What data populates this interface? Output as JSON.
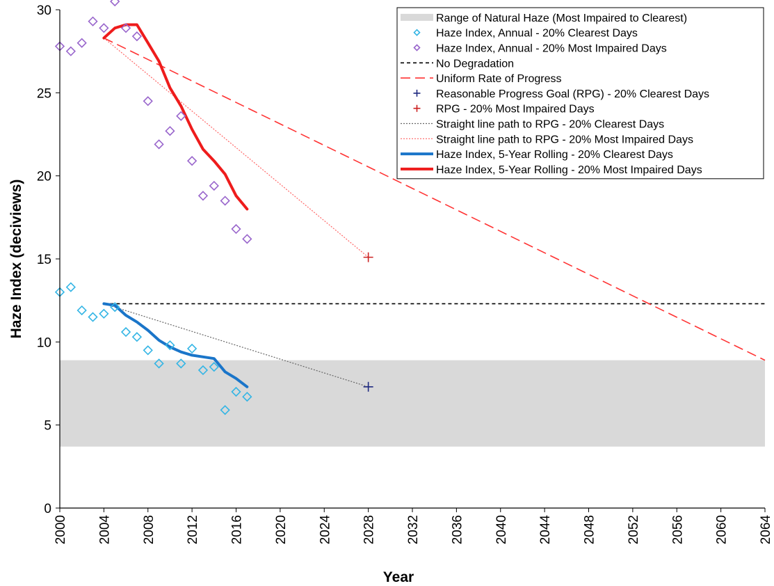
{
  "chart_data": {
    "type": "line",
    "xlabel": "Year",
    "ylabel": "Haze Index (deciviews)",
    "xlim": [
      2000,
      2064
    ],
    "ylim": [
      0,
      30
    ],
    "x_ticks": [
      "2000",
      "2004",
      "2008",
      "2012",
      "2016",
      "2020",
      "2024",
      "2028",
      "2032",
      "2036",
      "2040",
      "2044",
      "2048",
      "2052",
      "2056",
      "2060",
      "2064"
    ],
    "y_ticks": [
      "0",
      "5",
      "10",
      "15",
      "20",
      "25",
      "30"
    ],
    "legend_position": "top-right",
    "grid": false,
    "natural_haze_range": {
      "name": "Range of Natural Haze (Most Impaired to Clearest)",
      "y_min": 3.7,
      "y_max": 8.9,
      "color": "#d9d9d9"
    },
    "series": [
      {
        "name": "Haze Index, Annual - 20% Clearest Days",
        "kind": "scatter",
        "marker": "diamond",
        "color": "#33b5e5",
        "x": [
          2000,
          2001,
          2002,
          2003,
          2004,
          2005,
          2006,
          2007,
          2008,
          2009,
          2010,
          2011,
          2012,
          2013,
          2014,
          2015,
          2016,
          2017
        ],
        "y": [
          13.0,
          13.3,
          11.9,
          11.5,
          11.7,
          12.1,
          10.6,
          10.3,
          9.5,
          8.7,
          9.8,
          8.7,
          9.6,
          8.3,
          8.5,
          5.9,
          7.0,
          6.7
        ]
      },
      {
        "name": "Haze Index, Annual - 20% Most Impaired Days",
        "kind": "scatter",
        "marker": "diamond",
        "color": "#9966cc",
        "x": [
          2000,
          2001,
          2002,
          2003,
          2004,
          2005,
          2006,
          2007,
          2008,
          2009,
          2010,
          2011,
          2012,
          2013,
          2014,
          2015,
          2016,
          2017
        ],
        "y": [
          27.8,
          27.5,
          28.0,
          29.3,
          28.9,
          30.5,
          28.9,
          28.4,
          24.5,
          21.9,
          22.7,
          23.6,
          20.9,
          18.8,
          19.4,
          18.5,
          16.8,
          16.2
        ]
      },
      {
        "name": "No Degradation",
        "kind": "line",
        "style": "dashed-short",
        "color": "#000000",
        "x": [
          2004,
          2064
        ],
        "y": [
          12.3,
          12.3
        ]
      },
      {
        "name": "Uniform Rate of Progress",
        "kind": "line",
        "style": "dashed-long",
        "color": "#ff3333",
        "x": [
          2004,
          2064
        ],
        "y": [
          28.3,
          8.9
        ]
      },
      {
        "name": "Reasonable Progress Goal (RPG) - 20% Clearest Days",
        "kind": "point",
        "marker": "plus",
        "color": "#1f2a80",
        "x": [
          2028
        ],
        "y": [
          7.3
        ]
      },
      {
        "name": "RPG - 20% Most Impaired Days",
        "kind": "point",
        "marker": "plus",
        "color": "#cc2222",
        "x": [
          2028
        ],
        "y": [
          15.1
        ]
      },
      {
        "name": "Straight line path to RPG - 20% Clearest Days",
        "kind": "line",
        "style": "dotted",
        "color": "#666666",
        "x": [
          2004,
          2028
        ],
        "y": [
          12.3,
          7.3
        ]
      },
      {
        "name": "Straight line path to RPG - 20% Most Impaired Days",
        "kind": "line",
        "style": "dotted",
        "color": "#ff6666",
        "x": [
          2004,
          2028
        ],
        "y": [
          28.3,
          15.1
        ]
      },
      {
        "name": "Haze Index, 5-Year Rolling - 20% Clearest Days",
        "kind": "line",
        "style": "solid-thick",
        "color": "#1a75c9",
        "x": [
          2004,
          2005,
          2006,
          2007,
          2008,
          2009,
          2010,
          2011,
          2012,
          2013,
          2014,
          2015,
          2016,
          2017
        ],
        "y": [
          12.3,
          12.2,
          11.6,
          11.2,
          10.7,
          10.1,
          9.7,
          9.4,
          9.2,
          9.1,
          9.0,
          8.2,
          7.8,
          7.3
        ]
      },
      {
        "name": "Haze Index, 5-Year Rolling - 20% Most Impaired Days",
        "kind": "line",
        "style": "solid-thick",
        "color": "#ee1c1c",
        "x": [
          2004,
          2005,
          2006,
          2007,
          2008,
          2009,
          2010,
          2011,
          2012,
          2013,
          2014,
          2015,
          2016,
          2017
        ],
        "y": [
          28.3,
          28.9,
          29.1,
          29.1,
          28.0,
          26.9,
          25.3,
          24.2,
          22.8,
          21.6,
          20.9,
          20.1,
          18.8,
          18.0
        ]
      }
    ]
  }
}
